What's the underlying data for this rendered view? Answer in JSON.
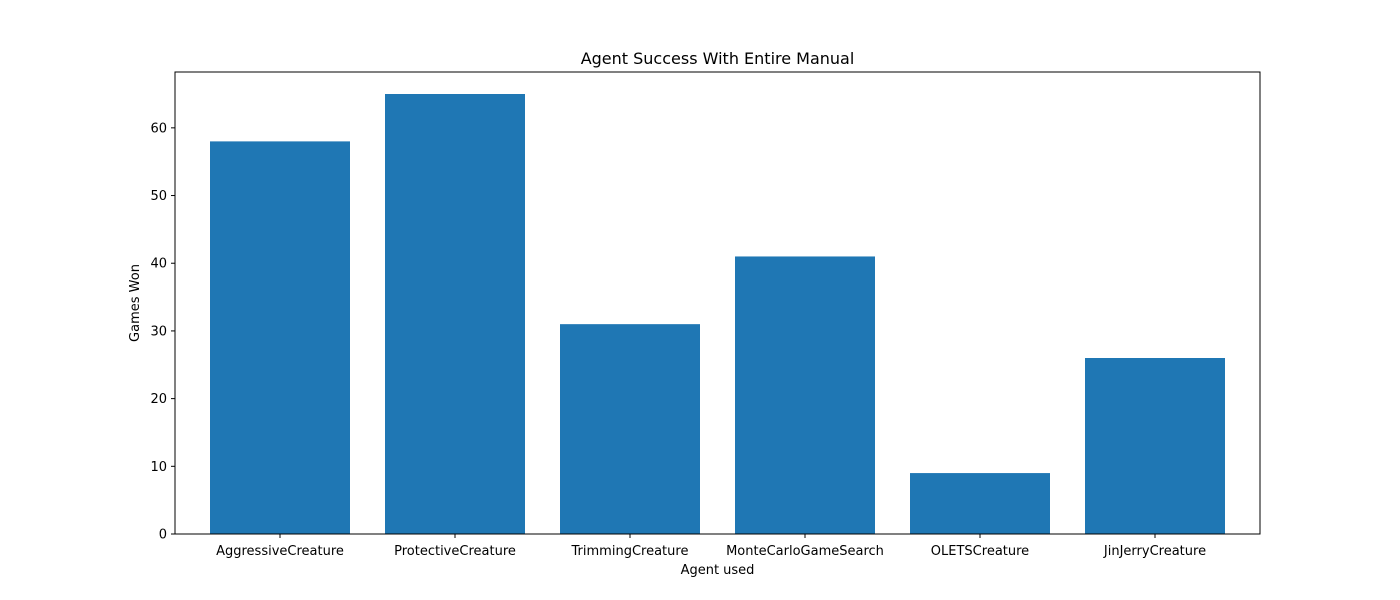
{
  "colors": {
    "bar": "#1f77b4",
    "axis": "#000000",
    "background": "#ffffff"
  },
  "chart_data": {
    "type": "bar",
    "title": "Agent Success With Entire Manual",
    "xlabel": "Agent used",
    "ylabel": "Games Won",
    "categories": [
      "AggressiveCreature",
      "ProtectiveCreature",
      "TrimmingCreature",
      "MonteCarloGameSearch",
      "OLETSCreature",
      "JinJerryCreature"
    ],
    "values": [
      58,
      65,
      31,
      41,
      9,
      26
    ],
    "ylim": [
      0,
      68.25
    ],
    "yticks": [
      0,
      10,
      20,
      30,
      40,
      50,
      60
    ],
    "grid": false,
    "legend": false
  }
}
